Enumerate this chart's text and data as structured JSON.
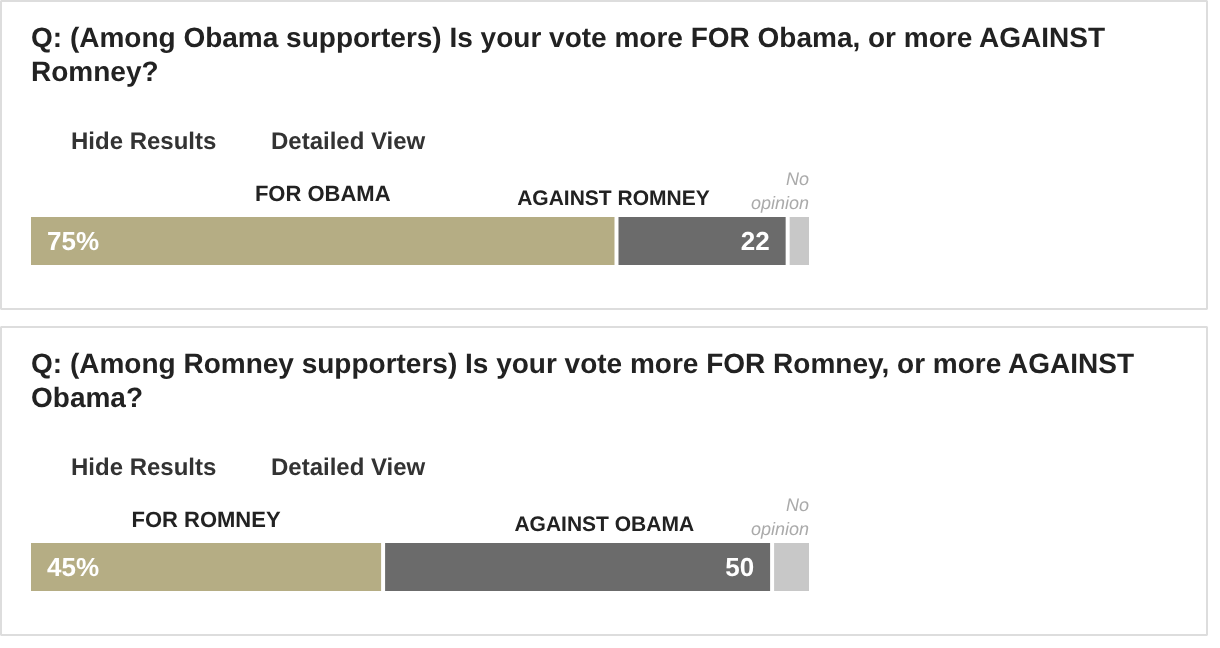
{
  "chart_data": [
    {
      "type": "bar",
      "orientation": "horizontal",
      "stacked": true,
      "tick_labels": false,
      "categories": [
        null
      ],
      "title": "Q: (Among Obama supporters) Is your vote more FOR Obama, or more AGAINST Romney?",
      "annotations": [
        "Hide Results",
        "Detailed View"
      ],
      "series": [
        {
          "name": "FOR OBAMA",
          "color": "#b5ad84",
          "values": [
            75
          ],
          "value_labels": [
            "75%"
          ]
        },
        {
          "name": "AGAINST ROMNEY",
          "color": "#6b6b6b",
          "values": [
            22
          ],
          "value_labels": [
            "22"
          ]
        },
        {
          "name": "No opinion",
          "color": "#c8c8c8",
          "values": [
            3
          ],
          "value_labels": [
            null
          ]
        }
      ]
    },
    {
      "type": "bar",
      "orientation": "horizontal",
      "stacked": true,
      "tick_labels": false,
      "categories": [
        null
      ],
      "title": "Q: (Among Romney supporters) Is your vote more FOR Romney, or more AGAINST Obama?",
      "annotations": [
        "Hide Results",
        "Detailed View"
      ],
      "series": [
        {
          "name": "FOR ROMNEY",
          "color": "#b5ad84",
          "values": [
            45
          ],
          "value_labels": [
            "45%"
          ]
        },
        {
          "name": "AGAINST OBAMA",
          "color": "#6b6b6b",
          "values": [
            50
          ],
          "value_labels": [
            "50"
          ]
        },
        {
          "name": "No opinion",
          "color": "#c8c8c8",
          "values": [
            5
          ],
          "value_labels": [
            null
          ]
        }
      ]
    }
  ]
}
